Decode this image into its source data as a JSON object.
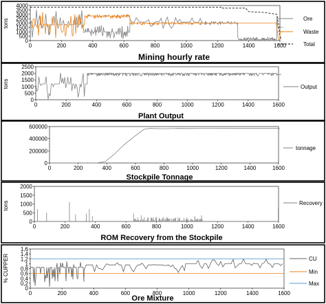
{
  "chart_data": [
    {
      "type": "line",
      "title": "Mining hourly rate",
      "ylabel": "tons",
      "xlim": [
        0,
        1600
      ],
      "ylim": [
        0,
        4000
      ],
      "xticks": [
        "0",
        "200",
        "400",
        "600",
        "800",
        "1000",
        "1200",
        "1400",
        "1600"
      ],
      "yticks": [
        "0",
        "500",
        "1000",
        "1500",
        "2000",
        "2500",
        "3000",
        "3500",
        "4000"
      ],
      "legend_position": "right",
      "series": [
        {
          "name": "Ore",
          "color": "#808080",
          "style": "solid",
          "segments": [
            {
              "x0": 0,
              "x1": 350,
              "low": 200,
              "high": 3600,
              "base": 1800,
              "freq": 2
            },
            {
              "x0": 350,
              "x1": 640,
              "low": 200,
              "high": 1800,
              "base": 1000,
              "freq": 4
            },
            {
              "x0": 640,
              "x1": 1100,
              "low": 1400,
              "high": 2800,
              "base": 2100,
              "freq": 1
            },
            {
              "x0": 1100,
              "x1": 1330,
              "low": 1800,
              "high": 2200,
              "base": 2000,
              "freq": 6
            },
            {
              "x0": 1330,
              "x1": 1335,
              "low": 400,
              "high": 400,
              "base": 400,
              "freq": 1
            },
            {
              "x0": 1335,
              "x1": 1580,
              "low": 0,
              "high": 400,
              "base": 100,
              "freq": 8
            },
            {
              "x0": 1580,
              "x1": 1620,
              "low": 0,
              "high": 3000,
              "base": 1500,
              "freq": 2
            }
          ]
        },
        {
          "name": "Waste",
          "color": "#e8821e",
          "style": "solid",
          "segments": [
            {
              "x0": 0,
              "x1": 350,
              "low": 200,
              "high": 3400,
              "base": 1800,
              "freq": 3
            },
            {
              "x0": 350,
              "x1": 640,
              "low": 2500,
              "high": 3000,
              "base": 2800,
              "freq": 6
            },
            {
              "x0": 640,
              "x1": 1100,
              "low": 1800,
              "high": 2100,
              "base": 2000,
              "freq": 6
            },
            {
              "x0": 1100,
              "x1": 1580,
              "low": 2000,
              "high": 2000,
              "base": 2000,
              "freq": 1
            },
            {
              "x0": 1580,
              "x1": 1620,
              "low": 0,
              "high": 2000,
              "base": 1000,
              "freq": 3
            }
          ]
        },
        {
          "name": "Total",
          "color": "#000000",
          "style": "dashed",
          "points": [
            [
              0,
              3800
            ],
            [
              1230,
              3800
            ],
            [
              1230,
              3700
            ],
            [
              1380,
              3700
            ],
            [
              1400,
              3300
            ],
            [
              1500,
              3200
            ],
            [
              1580,
              3000
            ],
            [
              1590,
              2000
            ],
            [
              1600,
              500
            ],
            [
              1610,
              100
            ]
          ]
        }
      ]
    },
    {
      "type": "line",
      "title": "Plant Output",
      "ylabel": "tons",
      "xlim": [
        0,
        1600
      ],
      "ylim": [
        0,
        2500
      ],
      "xticks": [
        "0",
        "200",
        "400",
        "600",
        "800",
        "1000",
        "1200",
        "1400",
        "1600"
      ],
      "yticks": [
        "0",
        "500",
        "1000",
        "1500",
        "2000",
        "2500"
      ],
      "legend_position": "right",
      "series": [
        {
          "name": "Output",
          "color": "#808080",
          "style": "solid",
          "segments": [
            {
              "x0": 0,
              "x1": 340,
              "low": 0,
              "high": 2100,
              "base": 1200,
              "freq": 2
            },
            {
              "x0": 340,
              "x1": 1580,
              "low": 1800,
              "high": 2000,
              "base": 2000,
              "freq": 14
            },
            {
              "x0": 1580,
              "x1": 1620,
              "low": 1800,
              "high": 2000,
              "base": 1900,
              "freq": 4
            }
          ]
        }
      ]
    },
    {
      "type": "line",
      "title": "Stockpile Tonnage",
      "ylabel": "",
      "xlim": [
        0,
        1600
      ],
      "ylim": [
        0,
        600000
      ],
      "xticks": [
        "0",
        "200",
        "400",
        "600",
        "800",
        "1000",
        "1200",
        "1400",
        "1600"
      ],
      "yticks": [
        "0",
        "200000",
        "400000",
        "600000"
      ],
      "legend_position": "right",
      "series": [
        {
          "name": "tonnage",
          "color": "#808080",
          "style": "solid",
          "points": [
            [
              0,
              0
            ],
            [
              330,
              0
            ],
            [
              390,
              25000
            ],
            [
              450,
              140000
            ],
            [
              520,
              300000
            ],
            [
              600,
              450000
            ],
            [
              660,
              555000
            ],
            [
              700,
              570000
            ],
            [
              800,
              565000
            ],
            [
              900,
              570000
            ],
            [
              1000,
              568000
            ],
            [
              1100,
              572000
            ],
            [
              1300,
              570000
            ],
            [
              1500,
              570000
            ],
            [
              1600,
              570000
            ],
            [
              1610,
              560000
            ]
          ]
        }
      ]
    },
    {
      "type": "line",
      "title": "ROM Recovery from the Stockpile",
      "ylabel": "tons",
      "xlim": [
        0,
        1600
      ],
      "ylim": [
        0,
        2000
      ],
      "xticks": [
        "0",
        "200",
        "400",
        "600",
        "800",
        "1000",
        "1200",
        "1400",
        "1600"
      ],
      "yticks": [
        "0",
        "500",
        "1000",
        "1500",
        "2000"
      ],
      "legend_position": "right",
      "series": [
        {
          "name": "Recovery",
          "color": "#808080",
          "style": "solid",
          "spikes": [
            [
              20,
              700
            ],
            [
              80,
              500
            ],
            [
              230,
              1100
            ],
            [
              270,
              400
            ],
            [
              340,
              450
            ],
            [
              360,
              700
            ],
            [
              380,
              300
            ],
            [
              650,
              450
            ],
            [
              700,
              350
            ],
            [
              800,
              250
            ],
            [
              1000,
              220
            ],
            [
              1050,
              300
            ],
            [
              1095,
              350
            ],
            [
              1598,
              800
            ]
          ],
          "baseline_noise": [
            [
              650,
              1100,
              250
            ]
          ]
        }
      ]
    },
    {
      "type": "line",
      "title": "Ore Mixture",
      "ylabel": "% CUPPER",
      "xlim": [
        0,
        1600
      ],
      "ylim": [
        0,
        1.6
      ],
      "xticks": [
        "0",
        "200",
        "400",
        "600",
        "800",
        "1000",
        "1200",
        "1400",
        "1600"
      ],
      "yticks": [
        "0",
        "0,2",
        "0,4",
        "0,6",
        "0,8",
        "1",
        "1,2",
        "1,4",
        "1,6"
      ],
      "legend_position": "right",
      "series": [
        {
          "name": "CU",
          "color": "#606060",
          "style": "solid",
          "segments": [
            {
              "x0": 0,
              "x1": 340,
              "low": 0,
              "high": 1.1,
              "base": 0.85,
              "freq": 3
            },
            {
              "x0": 340,
              "x1": 920,
              "low": 0.65,
              "high": 1.05,
              "base": 0.95,
              "freq": 1
            },
            {
              "x0": 920,
              "x1": 980,
              "low": 0.55,
              "high": 0.95,
              "base": 0.8,
              "freq": 1
            },
            {
              "x0": 980,
              "x1": 1600,
              "low": 0.8,
              "high": 1.2,
              "base": 1.0,
              "freq": 1
            }
          ]
        },
        {
          "name": "Min",
          "color": "#e8821e",
          "style": "solid",
          "points": [
            [
              0,
              0.6
            ],
            [
              1600,
              0.6
            ]
          ]
        },
        {
          "name": "Max",
          "color": "#5b9bd5",
          "style": "solid",
          "points": [
            [
              0,
              1.2
            ],
            [
              1600,
              1.2
            ]
          ]
        }
      ]
    }
  ]
}
